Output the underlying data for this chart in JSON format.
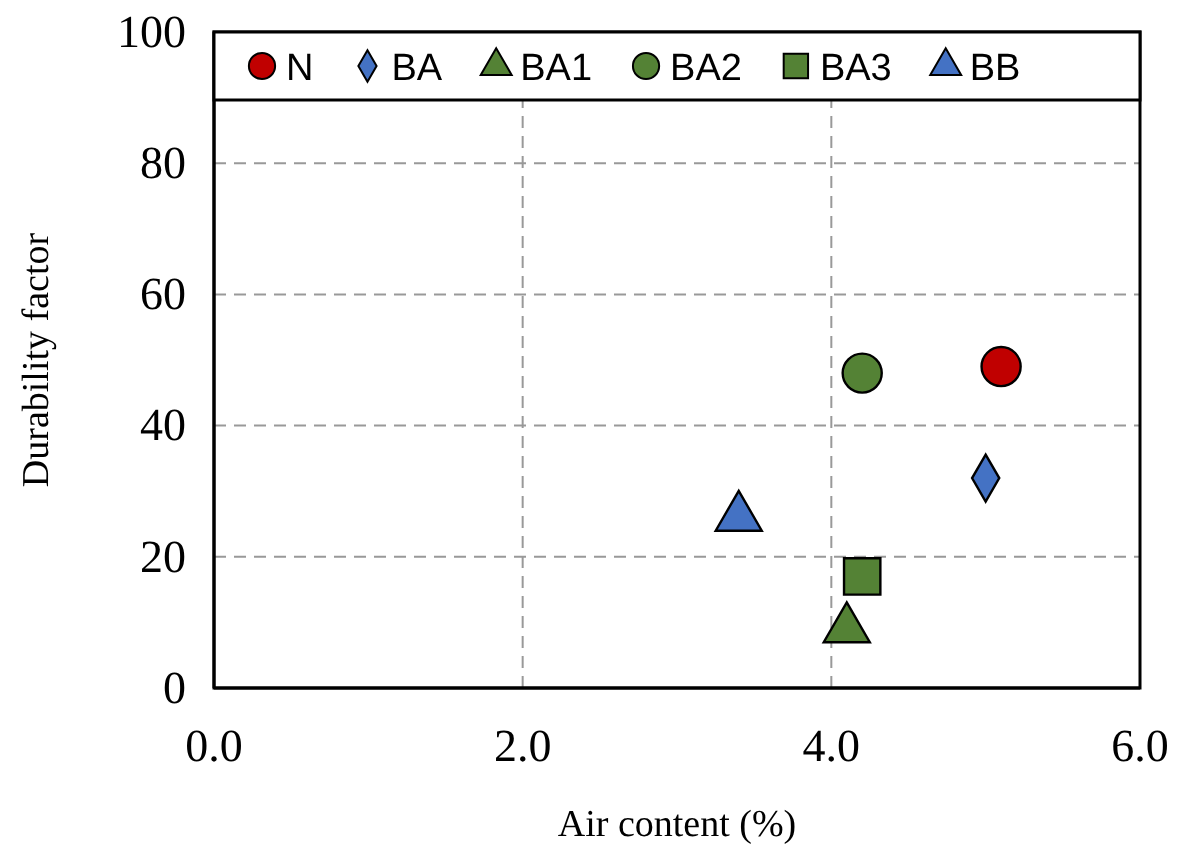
{
  "chart_data": {
    "type": "scatter",
    "xlabel": "Air content (%)",
    "ylabel": "Durability factor",
    "xlim": [
      0,
      6
    ],
    "xticks": [
      {
        "value": 0,
        "label": "0.0"
      },
      {
        "value": 2,
        "label": "2.0"
      },
      {
        "value": 4,
        "label": "4.0"
      },
      {
        "value": 6,
        "label": "6.0"
      }
    ],
    "ylim": [
      0,
      100
    ],
    "yticks": [
      0,
      20,
      40,
      60,
      80,
      100
    ],
    "grid": true,
    "legend": "top",
    "series": [
      {
        "name": "N",
        "color": "#c00000",
        "marker": "circle",
        "x": [
          5.1
        ],
        "values": [
          49
        ]
      },
      {
        "name": "BA",
        "color": "#4472c4",
        "marker": "diamond",
        "x": [
          5.0
        ],
        "values": [
          32
        ]
      },
      {
        "name": "BA1",
        "color": "#548235",
        "marker": "triangle",
        "x": [
          4.1
        ],
        "values": [
          9
        ]
      },
      {
        "name": "BA2",
        "color": "#548235",
        "marker": "circle",
        "x": [
          4.2
        ],
        "values": [
          48
        ]
      },
      {
        "name": "BA3",
        "color": "#548235",
        "marker": "square",
        "x": [
          4.2
        ],
        "values": [
          17
        ]
      },
      {
        "name": "BB",
        "color": "#4472c4",
        "marker": "triangle",
        "x": [
          3.4
        ],
        "values": [
          26
        ]
      }
    ]
  }
}
